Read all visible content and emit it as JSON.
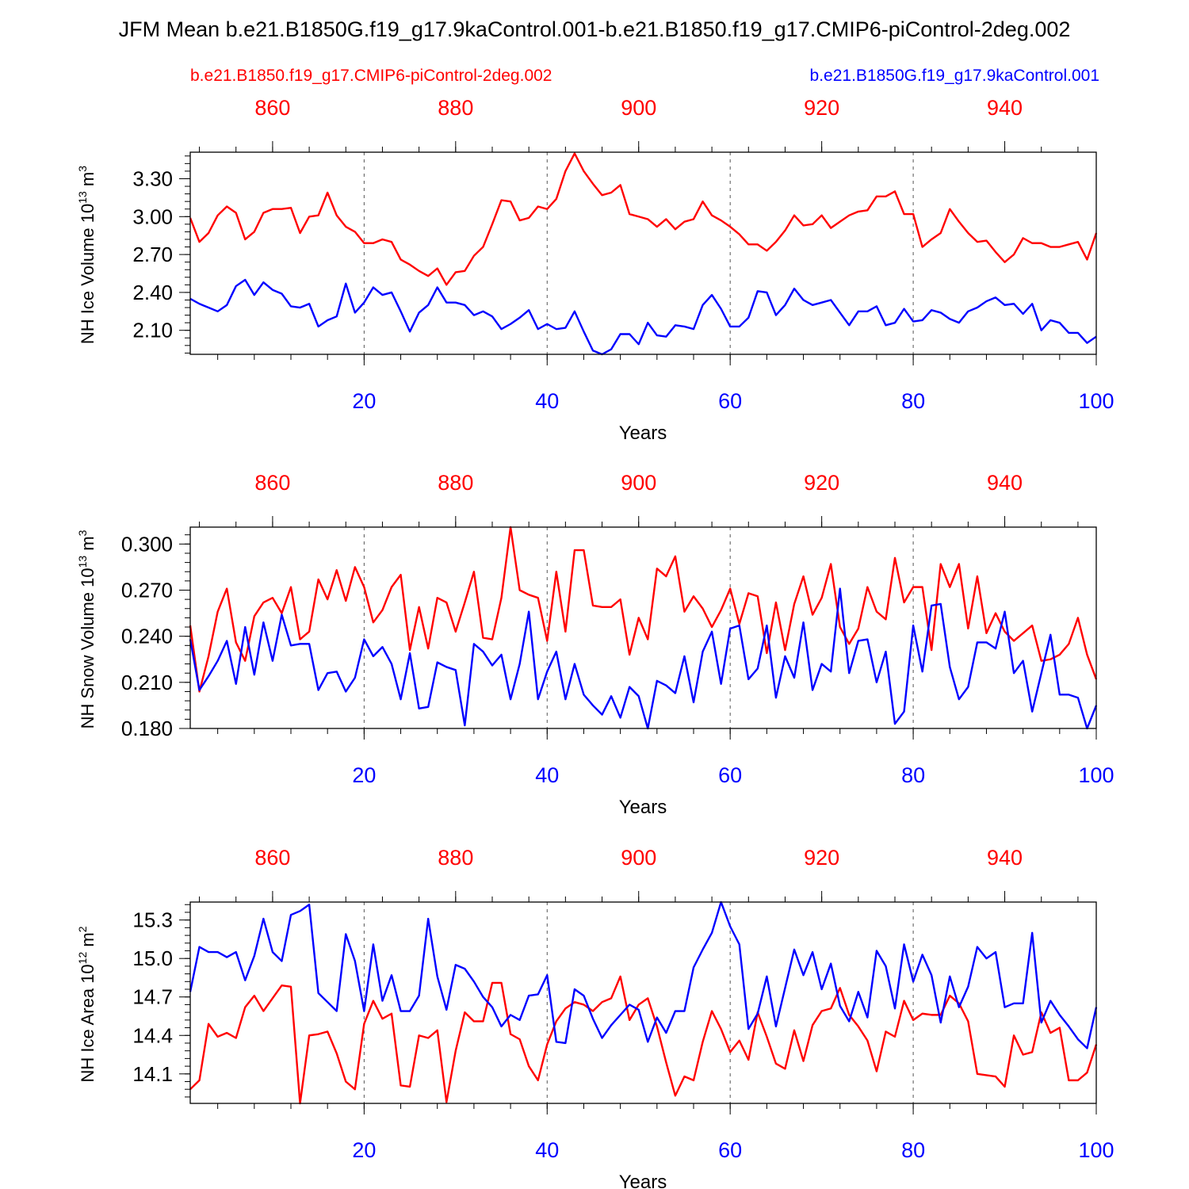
{
  "title": "JFM Mean b.e21.B1850G.f19_g17.9kaControl.001-b.e21.B1850.f19_g17.CMIP6-piControl-2deg.002",
  "legend": {
    "red_name": "b.e21.B1850.f19_g17.CMIP6-piControl-2deg.002",
    "blue_name": "b.e21.B1850G.f19_g17.9kaControl.001"
  },
  "colors": {
    "red": "#ff0000",
    "blue": "#0000ff",
    "text": "#000000"
  },
  "chart_data": [
    {
      "type": "line",
      "name": "ice-volume",
      "ylabel": "NH Ice Volume",
      "yunit": "10^13 m^3",
      "ylim": [
        1.91,
        3.51
      ],
      "yticks": [
        2.1,
        2.4,
        2.7,
        3.0,
        3.3
      ],
      "ytick_labels": [
        "2.10",
        "2.40",
        "2.70",
        "3.00",
        "3.30"
      ],
      "yminor_step": 0.06,
      "xlabel": "Years",
      "xlim": [
        1,
        100
      ],
      "xticks": [
        20,
        40,
        60,
        80,
        100
      ],
      "xtick_labels": [
        "20",
        "40",
        "60",
        "80",
        "100"
      ],
      "top_xlim": [
        851,
        950
      ],
      "top_xticks": [
        860,
        880,
        900,
        920,
        940
      ],
      "top_xtick_labels": [
        "860",
        "880",
        "900",
        "920",
        "940"
      ],
      "series": [
        {
          "name": "b.e21.B1850.f19_g17.CMIP6-piControl-2deg.002",
          "color": "#ff0000",
          "values": [
            2.99,
            2.8,
            2.87,
            3.01,
            3.08,
            3.03,
            2.82,
            2.88,
            3.03,
            3.06,
            3.06,
            3.07,
            2.87,
            3.0,
            3.01,
            3.19,
            3.01,
            2.92,
            2.88,
            2.79,
            2.79,
            2.82,
            2.8,
            2.66,
            2.62,
            2.57,
            2.53,
            2.59,
            2.46,
            2.56,
            2.57,
            2.69,
            2.76,
            2.94,
            3.13,
            3.12,
            2.97,
            2.99,
            3.08,
            3.06,
            3.14,
            3.36,
            3.5,
            3.36,
            3.26,
            3.17,
            3.19,
            3.25,
            3.02,
            3.0,
            2.98,
            2.92,
            2.98,
            2.9,
            2.96,
            2.98,
            3.12,
            3.01,
            2.97,
            2.92,
            2.86,
            2.78,
            2.78,
            2.73,
            2.8,
            2.89,
            3.01,
            2.93,
            2.94,
            3.01,
            2.91,
            2.96,
            3.01,
            3.04,
            3.05,
            3.16,
            3.16,
            3.2,
            3.02,
            3.02,
            2.76,
            2.82,
            2.87,
            3.06,
            2.96,
            2.87,
            2.8,
            2.81,
            2.72,
            2.64,
            2.7,
            2.83,
            2.79,
            2.79,
            2.76,
            2.76,
            2.78,
            2.8,
            2.66,
            2.87
          ]
        },
        {
          "name": "b.e21.B1850G.f19_g17.9kaControl.001",
          "color": "#0000ff",
          "values": [
            2.35,
            2.31,
            2.28,
            2.25,
            2.3,
            2.45,
            2.5,
            2.38,
            2.48,
            2.42,
            2.39,
            2.29,
            2.28,
            2.31,
            2.13,
            2.18,
            2.21,
            2.47,
            2.24,
            2.32,
            2.44,
            2.38,
            2.4,
            2.25,
            2.09,
            2.24,
            2.3,
            2.44,
            2.32,
            2.32,
            2.3,
            2.22,
            2.25,
            2.21,
            2.11,
            2.15,
            2.2,
            2.26,
            2.11,
            2.15,
            2.11,
            2.12,
            2.25,
            2.09,
            1.94,
            1.91,
            1.95,
            2.07,
            2.07,
            1.99,
            2.16,
            2.06,
            2.05,
            2.14,
            2.13,
            2.11,
            2.3,
            2.38,
            2.27,
            2.13,
            2.13,
            2.2,
            2.41,
            2.4,
            2.22,
            2.3,
            2.43,
            2.34,
            2.3,
            2.32,
            2.34,
            2.24,
            2.14,
            2.25,
            2.25,
            2.29,
            2.14,
            2.16,
            2.27,
            2.17,
            2.18,
            2.26,
            2.24,
            2.19,
            2.16,
            2.25,
            2.28,
            2.33,
            2.36,
            2.3,
            2.31,
            2.23,
            2.31,
            2.1,
            2.18,
            2.16,
            2.08,
            2.08,
            2.0,
            2.05
          ]
        }
      ]
    },
    {
      "type": "line",
      "name": "snow-volume",
      "ylabel": "NH Snow Volume",
      "yunit": "10^13 m^3",
      "ylim": [
        0.18,
        0.311
      ],
      "yticks": [
        0.18,
        0.21,
        0.24,
        0.27,
        0.3
      ],
      "ytick_labels": [
        "0.180",
        "0.210",
        "0.240",
        "0.270",
        "0.300"
      ],
      "yminor_step": 0.006,
      "xlabel": "Years",
      "xlim": [
        1,
        100
      ],
      "xticks": [
        20,
        40,
        60,
        80,
        100
      ],
      "xtick_labels": [
        "20",
        "40",
        "60",
        "80",
        "100"
      ],
      "top_xlim": [
        851,
        950
      ],
      "top_xticks": [
        860,
        880,
        900,
        920,
        940
      ],
      "top_xtick_labels": [
        "860",
        "880",
        "900",
        "920",
        "940"
      ],
      "series": [
        {
          "name": "b.e21.B1850.f19_g17.CMIP6-piControl-2deg.002",
          "color": "#ff0000",
          "values": [
            0.247,
            0.204,
            0.227,
            0.256,
            0.271,
            0.236,
            0.224,
            0.253,
            0.262,
            0.265,
            0.255,
            0.272,
            0.238,
            0.243,
            0.277,
            0.264,
            0.283,
            0.263,
            0.285,
            0.272,
            0.249,
            0.257,
            0.272,
            0.28,
            0.231,
            0.259,
            0.232,
            0.265,
            0.262,
            0.243,
            0.262,
            0.282,
            0.239,
            0.238,
            0.265,
            0.311,
            0.27,
            0.267,
            0.265,
            0.237,
            0.282,
            0.243,
            0.296,
            0.296,
            0.26,
            0.259,
            0.259,
            0.264,
            0.228,
            0.252,
            0.238,
            0.284,
            0.279,
            0.292,
            0.256,
            0.266,
            0.258,
            0.246,
            0.257,
            0.271,
            0.248,
            0.268,
            0.266,
            0.229,
            0.262,
            0.231,
            0.261,
            0.279,
            0.254,
            0.265,
            0.287,
            0.246,
            0.235,
            0.245,
            0.272,
            0.256,
            0.251,
            0.291,
            0.262,
            0.272,
            0.272,
            0.231,
            0.287,
            0.272,
            0.287,
            0.245,
            0.279,
            0.242,
            0.255,
            0.243,
            0.237,
            0.242,
            0.247,
            0.224,
            0.225,
            0.228,
            0.235,
            0.252,
            0.228,
            0.212
          ]
        },
        {
          "name": "b.e21.B1850G.f19_g17.9kaControl.001",
          "color": "#0000ff",
          "values": [
            0.238,
            0.205,
            0.214,
            0.224,
            0.237,
            0.209,
            0.246,
            0.215,
            0.249,
            0.224,
            0.254,
            0.234,
            0.235,
            0.235,
            0.205,
            0.216,
            0.217,
            0.204,
            0.213,
            0.238,
            0.227,
            0.233,
            0.222,
            0.199,
            0.229,
            0.193,
            0.194,
            0.223,
            0.22,
            0.218,
            0.182,
            0.235,
            0.23,
            0.221,
            0.228,
            0.199,
            0.222,
            0.256,
            0.199,
            0.217,
            0.23,
            0.199,
            0.222,
            0.202,
            0.195,
            0.189,
            0.201,
            0.187,
            0.207,
            0.201,
            0.18,
            0.211,
            0.208,
            0.203,
            0.227,
            0.197,
            0.23,
            0.243,
            0.209,
            0.245,
            0.247,
            0.212,
            0.219,
            0.247,
            0.2,
            0.227,
            0.213,
            0.249,
            0.205,
            0.222,
            0.217,
            0.271,
            0.216,
            0.237,
            0.238,
            0.21,
            0.23,
            0.183,
            0.191,
            0.247,
            0.217,
            0.26,
            0.261,
            0.22,
            0.199,
            0.207,
            0.236,
            0.236,
            0.232,
            0.256,
            0.216,
            0.224,
            0.191,
            0.216,
            0.241,
            0.202,
            0.202,
            0.2,
            0.18,
            0.195
          ]
        }
      ]
    },
    {
      "type": "line",
      "name": "ice-area",
      "ylabel": "NH Ice Area",
      "yunit": "10^12 m^2",
      "ylim": [
        13.87,
        15.44
      ],
      "yticks": [
        14.1,
        14.4,
        14.7,
        15.0,
        15.3
      ],
      "ytick_labels": [
        "14.1",
        "14.4",
        "14.7",
        "15.0",
        "15.3"
      ],
      "yminor_step": 0.06,
      "xlabel": "Years",
      "xlim": [
        1,
        100
      ],
      "xticks": [
        20,
        40,
        60,
        80,
        100
      ],
      "xtick_labels": [
        "20",
        "40",
        "60",
        "80",
        "100"
      ],
      "top_xlim": [
        851,
        950
      ],
      "top_xticks": [
        860,
        880,
        900,
        920,
        940
      ],
      "top_xtick_labels": [
        "860",
        "880",
        "900",
        "920",
        "940"
      ],
      "series": [
        {
          "name": "b.e21.B1850.f19_g17.CMIP6-piControl-2deg.002",
          "color": "#ff0000",
          "values": [
            13.98,
            14.05,
            14.49,
            14.39,
            14.42,
            14.38,
            14.62,
            14.71,
            14.59,
            14.69,
            14.79,
            14.78,
            13.87,
            14.4,
            14.41,
            14.43,
            14.26,
            14.04,
            13.98,
            14.49,
            14.67,
            14.53,
            14.57,
            14.01,
            14.0,
            14.4,
            14.38,
            14.44,
            13.88,
            14.28,
            14.58,
            14.51,
            14.51,
            14.81,
            14.81,
            14.41,
            14.37,
            14.16,
            14.05,
            14.33,
            14.51,
            14.61,
            14.66,
            14.64,
            14.59,
            14.66,
            14.69,
            14.86,
            14.52,
            14.64,
            14.69,
            14.47,
            14.19,
            13.93,
            14.08,
            14.05,
            14.35,
            14.59,
            14.45,
            14.27,
            14.36,
            14.21,
            14.58,
            14.39,
            14.18,
            14.14,
            14.44,
            14.2,
            14.48,
            14.59,
            14.61,
            14.77,
            14.56,
            14.47,
            14.36,
            14.12,
            14.43,
            14.39,
            14.67,
            14.52,
            14.57,
            14.56,
            14.56,
            14.71,
            14.65,
            14.51,
            14.1,
            14.09,
            14.08,
            14.0,
            14.4,
            14.25,
            14.27,
            14.58,
            14.42,
            14.46,
            14.05,
            14.05,
            14.11,
            14.33
          ]
        },
        {
          "name": "b.e21.B1850G.f19_g17.9kaControl.001",
          "color": "#0000ff",
          "values": [
            14.74,
            15.09,
            15.05,
            15.05,
            15.01,
            15.05,
            14.83,
            15.02,
            15.31,
            15.05,
            14.98,
            15.34,
            15.37,
            15.42,
            14.73,
            14.66,
            14.59,
            15.19,
            14.98,
            14.59,
            15.11,
            14.67,
            14.87,
            14.59,
            14.59,
            14.71,
            15.31,
            14.86,
            14.6,
            14.95,
            14.92,
            14.82,
            14.7,
            14.62,
            14.47,
            14.56,
            14.52,
            14.71,
            14.72,
            14.87,
            14.35,
            14.34,
            14.76,
            14.71,
            14.53,
            14.38,
            14.48,
            14.56,
            14.64,
            14.6,
            14.35,
            14.54,
            14.42,
            14.59,
            14.59,
            14.93,
            15.07,
            15.2,
            15.44,
            15.25,
            15.11,
            14.45,
            14.57,
            14.86,
            14.47,
            14.77,
            15.07,
            14.87,
            15.05,
            14.76,
            14.96,
            14.63,
            14.51,
            14.74,
            14.54,
            15.06,
            14.94,
            14.61,
            15.11,
            14.82,
            15.03,
            14.87,
            14.5,
            14.86,
            14.62,
            14.78,
            15.09,
            15.0,
            15.05,
            14.62,
            14.65,
            14.65,
            15.2,
            14.5,
            14.67,
            14.56,
            14.47,
            14.37,
            14.3,
            14.62
          ]
        }
      ]
    }
  ]
}
